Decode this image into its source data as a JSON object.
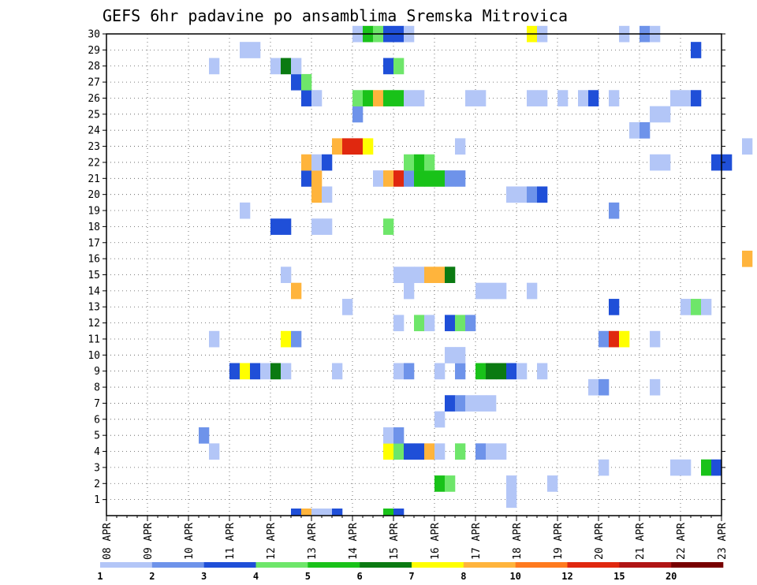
{
  "chart_data": {
    "type": "heatmap",
    "title": "GEFS 6hr padavine po ansamblima Sremska Mitrovica",
    "xlabel": "",
    "ylabel": "",
    "x_ticks": [
      "08 APR",
      "09 APR",
      "10 APR",
      "11 APR",
      "12 APR",
      "13 APR",
      "14 APR",
      "15 APR",
      "16 APR",
      "17 APR",
      "18 APR",
      "19 APR",
      "20 APR",
      "21 APR",
      "22 APR",
      "23 APR"
    ],
    "y_ticks": [
      "1",
      "2",
      "3",
      "4",
      "5",
      "6",
      "7",
      "8",
      "9",
      "10",
      "11",
      "12",
      "13",
      "14",
      "15",
      "16",
      "17",
      "18",
      "19",
      "20",
      "21",
      "22",
      "23",
      "24",
      "25",
      "26",
      "27",
      "28",
      "29",
      "30"
    ],
    "grid": true,
    "colorbar": {
      "labels": [
        "1",
        "2",
        "3",
        "4",
        "5",
        "6",
        "7",
        "8",
        "10",
        "12",
        "15",
        "20"
      ],
      "colors": [
        "#b3c6f7",
        "#6e93ea",
        "#1f4fd8",
        "#6ee66a",
        "#19c219",
        "#0b7a12",
        "#ffff00",
        "#ffb43c",
        "#ff7a1e",
        "#e0280f",
        "#b01414",
        "#780000"
      ]
    },
    "member_rows": [
      {
        "member": 1,
        "cells": [
          [
            "04-17T18",
            1
          ]
        ]
      },
      {
        "member": 2,
        "cells": [
          [
            "04-16T00",
            5
          ],
          [
            "04-16T06",
            4
          ],
          [
            "04-17T18",
            1
          ],
          [
            "04-18T18",
            1
          ]
        ]
      },
      {
        "member": 3,
        "cells": [
          [
            "04-20T00",
            1
          ],
          [
            "04-21T18",
            1
          ],
          [
            "04-22T00",
            1
          ],
          [
            "04-22T12",
            5
          ],
          [
            "04-22T18",
            3
          ]
        ]
      },
      {
        "member": 4,
        "cells": [
          [
            "04-10T12",
            1
          ],
          [
            "04-14T18",
            7
          ],
          [
            "04-15T00",
            4
          ],
          [
            "04-15T06",
            3
          ],
          [
            "04-15T12",
            3
          ],
          [
            "04-15T18",
            8
          ],
          [
            "04-16T00",
            1
          ],
          [
            "04-16T12",
            4
          ],
          [
            "04-17T00",
            2
          ],
          [
            "04-17T06",
            1
          ],
          [
            "04-17T12",
            1
          ]
        ]
      },
      {
        "member": 5,
        "cells": [
          [
            "04-10T06",
            2
          ],
          [
            "04-14T18",
            1
          ],
          [
            "04-15T00",
            2
          ]
        ]
      },
      {
        "member": 6,
        "cells": [
          [
            "04-16T00",
            1
          ]
        ]
      },
      {
        "member": 7,
        "cells": [
          [
            "04-16T06",
            3
          ],
          [
            "04-16T12",
            2
          ],
          [
            "04-16T18",
            1
          ],
          [
            "04-17T00",
            1
          ],
          [
            "04-17T06",
            1
          ]
        ]
      },
      {
        "member": 8,
        "cells": [
          [
            "04-19T18",
            1
          ],
          [
            "04-20T00",
            2
          ],
          [
            "04-21T06",
            1
          ]
        ]
      },
      {
        "member": 9,
        "cells": [
          [
            "04-11T00",
            3
          ],
          [
            "04-11T06",
            7
          ],
          [
            "04-11T12",
            3
          ],
          [
            "04-11T18",
            1
          ],
          [
            "04-12T00",
            6
          ],
          [
            "04-12T06",
            1
          ],
          [
            "04-13T12",
            1
          ],
          [
            "04-15T00",
            1
          ],
          [
            "04-15T06",
            2
          ],
          [
            "04-16T00",
            1
          ],
          [
            "04-16T12",
            2
          ],
          [
            "04-17T00",
            5
          ],
          [
            "04-17T06",
            6
          ],
          [
            "04-17T12",
            6
          ],
          [
            "04-17T18",
            3
          ],
          [
            "04-18T00",
            1
          ],
          [
            "04-18T12",
            1
          ]
        ]
      },
      {
        "member": 10,
        "cells": [
          [
            "04-16T06",
            1
          ],
          [
            "04-16T12",
            1
          ]
        ]
      },
      {
        "member": 11,
        "cells": [
          [
            "04-10T12",
            1
          ],
          [
            "04-12T06",
            7
          ],
          [
            "04-12T12",
            2
          ],
          [
            "04-20T00",
            2
          ],
          [
            "04-20T06",
            12
          ],
          [
            "04-20T12",
            7
          ],
          [
            "04-21T06",
            1
          ]
        ]
      },
      {
        "member": 12,
        "cells": [
          [
            "04-15T00",
            1
          ],
          [
            "04-15T12",
            4
          ],
          [
            "04-15T18",
            1
          ],
          [
            "04-16T06",
            3
          ],
          [
            "04-16T12",
            4
          ],
          [
            "04-16T18",
            2
          ]
        ]
      },
      {
        "member": 13,
        "cells": [
          [
            "04-13T18",
            1
          ],
          [
            "04-20T06",
            3
          ],
          [
            "04-22T00",
            1
          ],
          [
            "04-22T06",
            4
          ],
          [
            "04-22T12",
            1
          ]
        ]
      },
      {
        "member": 14,
        "cells": [
          [
            "04-12T12",
            8
          ],
          [
            "04-15T06",
            1
          ],
          [
            "04-17T00",
            1
          ],
          [
            "04-17T06",
            1
          ],
          [
            "04-17T12",
            1
          ],
          [
            "04-18T06",
            1
          ]
        ]
      },
      {
        "member": 15,
        "cells": [
          [
            "04-12T06",
            1
          ],
          [
            "04-15T00",
            1
          ],
          [
            "04-15T06",
            1
          ],
          [
            "04-15T12",
            1
          ],
          [
            "04-15T18",
            9
          ],
          [
            "04-16T00",
            9
          ],
          [
            "04-16T06",
            6
          ]
        ]
      },
      {
        "member": 16,
        "cells": [
          [
            "04-23T12",
            9
          ]
        ]
      },
      {
        "member": 17,
        "cells": []
      },
      {
        "member": 18,
        "cells": [
          [
            "04-12T00",
            3
          ],
          [
            "04-12T06",
            3
          ],
          [
            "04-13T00",
            1
          ],
          [
            "04-13T06",
            1
          ],
          [
            "04-14T18",
            4
          ]
        ]
      },
      {
        "member": 19,
        "cells": [
          [
            "04-11T06",
            1
          ],
          [
            "04-20T06",
            2
          ]
        ]
      },
      {
        "member": 20,
        "cells": [
          [
            "04-13T00",
            8
          ],
          [
            "04-13T06",
            1
          ],
          [
            "04-17T18",
            1
          ],
          [
            "04-18T00",
            1
          ],
          [
            "04-18T06",
            2
          ],
          [
            "04-18T12",
            3
          ]
        ]
      },
      {
        "member": 21,
        "cells": [
          [
            "04-12T18",
            3
          ],
          [
            "04-13T00",
            8
          ],
          [
            "04-14T12",
            1
          ],
          [
            "04-14T18",
            9
          ],
          [
            "04-15T00",
            12
          ],
          [
            "04-15T06",
            2
          ],
          [
            "04-15T12",
            5
          ],
          [
            "04-15T18",
            5
          ],
          [
            "04-16T00",
            5
          ],
          [
            "04-16T06",
            2
          ],
          [
            "04-16T12",
            2
          ]
        ]
      },
      {
        "member": 22,
        "cells": [
          [
            "04-12T18",
            9
          ],
          [
            "04-13T00",
            1
          ],
          [
            "04-13T06",
            3
          ],
          [
            "04-15T06",
            4
          ],
          [
            "04-15T12",
            5
          ],
          [
            "04-15T18",
            4
          ],
          [
            "04-21T06",
            1
          ],
          [
            "04-21T12",
            1
          ],
          [
            "04-22T18",
            3
          ],
          [
            "04-23T00",
            3
          ]
        ]
      },
      {
        "member": 23,
        "cells": [
          [
            "04-13T12",
            9
          ],
          [
            "04-13T18",
            12
          ],
          [
            "04-14T00",
            12
          ],
          [
            "04-14T06",
            7
          ],
          [
            "04-16T12",
            1
          ],
          [
            "04-23T12",
            1
          ]
        ]
      },
      {
        "member": 24,
        "cells": [
          [
            "04-20T18",
            1
          ],
          [
            "04-21T00",
            2
          ]
        ]
      },
      {
        "member": 25,
        "cells": [
          [
            "04-14T00",
            2
          ],
          [
            "04-21T06",
            1
          ],
          [
            "04-21T12",
            1
          ]
        ]
      },
      {
        "member": 26,
        "cells": [
          [
            "04-12T18",
            3
          ],
          [
            "04-13T00",
            1
          ],
          [
            "04-14T00",
            4
          ],
          [
            "04-14T06",
            5
          ],
          [
            "04-14T12",
            9
          ],
          [
            "04-14T18",
            5
          ],
          [
            "04-15T00",
            5
          ],
          [
            "04-15T06",
            1
          ],
          [
            "04-15T12",
            1
          ],
          [
            "04-16T18",
            1
          ],
          [
            "04-17T00",
            1
          ],
          [
            "04-18T06",
            1
          ],
          [
            "04-18T12",
            1
          ],
          [
            "04-19T00",
            1
          ],
          [
            "04-19T12",
            1
          ],
          [
            "04-19T18",
            3
          ],
          [
            "04-20T06",
            1
          ],
          [
            "04-21T18",
            1
          ],
          [
            "04-22T00",
            1
          ],
          [
            "04-22T06",
            3
          ]
        ]
      },
      {
        "member": 27,
        "cells": [
          [
            "04-12T12",
            3
          ],
          [
            "04-12T18",
            4
          ]
        ]
      },
      {
        "member": 28,
        "cells": [
          [
            "04-10T12",
            1
          ],
          [
            "04-12T00",
            1
          ],
          [
            "04-12T06",
            6
          ],
          [
            "04-12T12",
            1
          ],
          [
            "04-14T18",
            3
          ],
          [
            "04-15T00",
            4
          ]
        ]
      },
      {
        "member": 29,
        "cells": [
          [
            "04-11T06",
            1
          ],
          [
            "04-11T12",
            1
          ],
          [
            "04-22T06",
            3
          ]
        ]
      },
      {
        "member": 30,
        "cells": [
          [
            "04-14T00",
            1
          ],
          [
            "04-14T06",
            5
          ],
          [
            "04-14T12",
            4
          ],
          [
            "04-14T18",
            3
          ],
          [
            "04-15T00",
            3
          ],
          [
            "04-15T06",
            1
          ],
          [
            "04-18T06",
            7
          ],
          [
            "04-18T12",
            1
          ],
          [
            "04-20T12",
            1
          ],
          [
            "04-21T00",
            2
          ],
          [
            "04-21T06",
            1
          ]
        ]
      }
    ],
    "bottom_strip": [
      [
        "04-12T12",
        3
      ],
      [
        "04-12T18",
        8
      ],
      [
        "04-13T00",
        1
      ],
      [
        "04-13T06",
        1
      ],
      [
        "04-13T12",
        3
      ],
      [
        "04-14T18",
        5
      ],
      [
        "04-15T00",
        3
      ]
    ]
  }
}
